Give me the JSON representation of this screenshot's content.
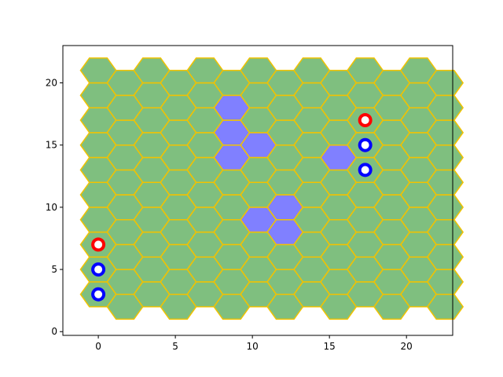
{
  "chart_data": {
    "type": "hex-board",
    "xlim": [
      -2.3,
      23.0
    ],
    "ylim": [
      -0.3,
      23.0
    ],
    "x_ticks": [
      0,
      5,
      10,
      15,
      20
    ],
    "y_ticks": [
      0,
      5,
      10,
      15,
      20
    ],
    "grid": false,
    "board": {
      "columns": 14,
      "hex_radius": 1.155,
      "column_spacing": 1.732,
      "even_column_y_start": 3,
      "even_column_y_end": 21,
      "odd_column_y_start": 2,
      "odd_column_y_end": 20,
      "row_spacing": 2
    },
    "colors": {
      "tile_fill": "#7fbf7f",
      "tile_edge": "#f2c200",
      "highlight_fill": "#8080ff",
      "red_marker": "#ff0000",
      "blue_marker": "#0000ff",
      "marker_center": "#ffffff"
    },
    "highlighted_tiles": [
      {
        "col": 5,
        "y": 18
      },
      {
        "col": 5,
        "y": 16
      },
      {
        "col": 5,
        "y": 14
      },
      {
        "col": 6,
        "y": 15
      },
      {
        "col": 6,
        "y": 9
      },
      {
        "col": 7,
        "y": 10
      },
      {
        "col": 7,
        "y": 8
      },
      {
        "col": 9,
        "y": 14
      }
    ],
    "markers": [
      {
        "x": 0,
        "y": 7,
        "color": "red"
      },
      {
        "x": 0,
        "y": 5,
        "color": "blue"
      },
      {
        "x": 0,
        "y": 3,
        "color": "blue"
      },
      {
        "x": 17.32,
        "y": 17,
        "color": "red"
      },
      {
        "x": 17.32,
        "y": 15,
        "color": "blue"
      },
      {
        "x": 17.32,
        "y": 13,
        "color": "blue"
      }
    ]
  }
}
